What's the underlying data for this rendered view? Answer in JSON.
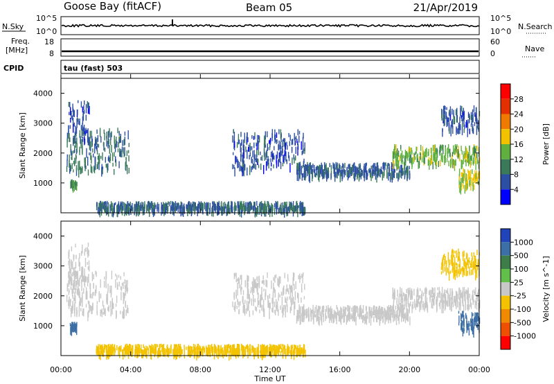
{
  "header": {
    "station": "Goose Bay (fitACF)",
    "beam": "Beam 05",
    "date": "21/Apr/2019"
  },
  "aux_panels": {
    "nsky_label": "N.Sky",
    "nsearch_label": "N.Search",
    "freq_label_1": "Freq.",
    "freq_label_2": "[MHz]",
    "nave_label": "Nave",
    "cpid_label": "CPID",
    "cpid_text": "tau (fast) 503",
    "noise_left_ticks": [
      "10^5",
      "10^0"
    ],
    "noise_right_ticks": [
      "10^5",
      "10^0"
    ],
    "freq_ticks": [
      "18",
      "8"
    ],
    "nave_ticks": [
      "60",
      "0"
    ]
  },
  "x_axis": {
    "title": "Time UT",
    "ticks": [
      "00:00",
      "04:00",
      "08:00",
      "12:00",
      "16:00",
      "20:00",
      "00:00"
    ]
  },
  "colors": {
    "power": [
      "#0000ff",
      "#2d4fa3",
      "#3a7a5a",
      "#5fb03f",
      "#f2c200",
      "#f07a00",
      "#e33000",
      "#ff0000"
    ],
    "velocity": [
      "#2244bb",
      "#3c6fa6",
      "#3d7d4a",
      "#62c04a",
      "#c8c8c8",
      "#f3c200",
      "#f08a00",
      "#ec5000",
      "#ff0000"
    ]
  },
  "chart_data": [
    {
      "type": "heatmap",
      "name": "power-panel",
      "ylabel": "Slant Range [km]",
      "yticks": [
        "1000",
        "2000",
        "3000",
        "4000"
      ],
      "ylim": [
        0,
        4500
      ],
      "xlim_hours": [
        0,
        24
      ],
      "colorbar": {
        "label": "Power [dB]",
        "ticks": [
          "4",
          "8",
          "12",
          "16",
          "20",
          "24",
          "28"
        ],
        "range": [
          0,
          32
        ]
      },
      "bands": [
        {
          "t0": 0.3,
          "t1": 3.9,
          "r0": 1450,
          "r1": 2850,
          "v": 9
        },
        {
          "t0": 0.4,
          "t1": 1.6,
          "r0": 2500,
          "r1": 3800,
          "v": 6
        },
        {
          "t0": 0.5,
          "t1": 0.9,
          "r0": 950,
          "r1": 1150,
          "v": 13
        },
        {
          "t0": 9.8,
          "t1": 14.0,
          "r0": 1500,
          "r1": 2800,
          "v": 6
        },
        {
          "t0": 13.5,
          "t1": 20.0,
          "r0": 1300,
          "r1": 1700,
          "v": 7
        },
        {
          "t0": 19.0,
          "t1": 24.0,
          "r0": 1700,
          "r1": 2300,
          "v": 14
        },
        {
          "t0": 21.8,
          "t1": 24.0,
          "r0": 2800,
          "r1": 3600,
          "v": 6
        },
        {
          "t0": 22.8,
          "t1": 24.0,
          "r0": 900,
          "r1": 1500,
          "v": 17
        },
        {
          "t0": 2.0,
          "t1": 14.0,
          "r0": 150,
          "r1": 400,
          "v": 8
        }
      ]
    },
    {
      "type": "heatmap",
      "name": "velocity-panel",
      "ylabel": "Slant Range [km]",
      "yticks": [
        "1000",
        "2000",
        "3000",
        "4000"
      ],
      "ylim": [
        0,
        4500
      ],
      "xlim_hours": [
        0,
        24
      ],
      "colorbar": {
        "label": "Velocity [m s^-1]",
        "ticks": [
          "1000",
          "500",
          "100",
          "25",
          "-25",
          "-100",
          "-500",
          "-1000"
        ]
      },
      "bands": [
        {
          "t0": 0.3,
          "t1": 3.9,
          "r0": 1450,
          "r1": 2850,
          "v": 0
        },
        {
          "t0": 0.4,
          "t1": 1.6,
          "r0": 2500,
          "r1": 3800,
          "v": 0
        },
        {
          "t0": 0.5,
          "t1": 0.9,
          "r0": 950,
          "r1": 1150,
          "v": 150
        },
        {
          "t0": 9.8,
          "t1": 14.0,
          "r0": 1500,
          "r1": 2800,
          "v": 0
        },
        {
          "t0": 13.5,
          "t1": 20.0,
          "r0": 1300,
          "r1": 1700,
          "v": 0
        },
        {
          "t0": 19.0,
          "t1": 24.0,
          "r0": 1700,
          "r1": 2300,
          "v": 0
        },
        {
          "t0": 21.8,
          "t1": 24.0,
          "r0": 2800,
          "r1": 3600,
          "v": -60
        },
        {
          "t0": 22.8,
          "t1": 24.0,
          "r0": 900,
          "r1": 1500,
          "v": 150
        },
        {
          "t0": 2.0,
          "t1": 14.0,
          "r0": 150,
          "r1": 400,
          "v": -50
        }
      ]
    }
  ]
}
